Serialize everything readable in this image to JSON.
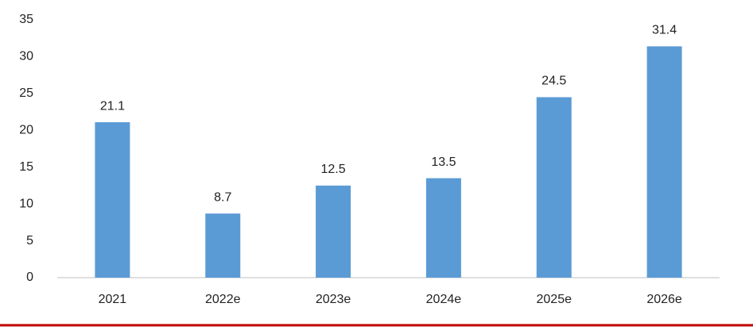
{
  "chart_data": {
    "type": "bar",
    "categories": [
      "2021",
      "2022e",
      "2023e",
      "2024e",
      "2025e",
      "2026e"
    ],
    "values": [
      21.1,
      8.7,
      12.5,
      13.5,
      24.5,
      31.4
    ],
    "color": "#5b9bd5",
    "ylim": [
      0,
      35
    ],
    "yticks": [
      0,
      5,
      10,
      15,
      20,
      25,
      30,
      35
    ],
    "grid": false
  }
}
